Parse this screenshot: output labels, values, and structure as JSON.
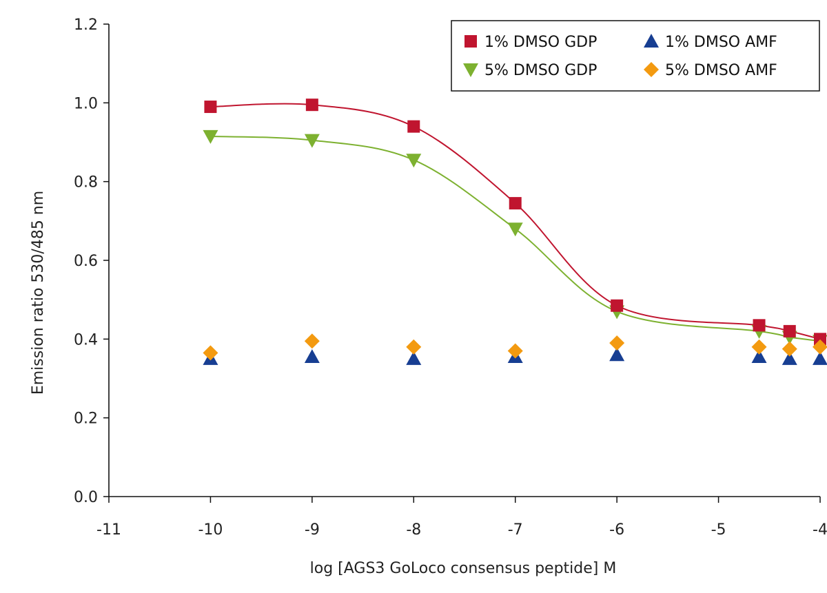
{
  "chart_data": {
    "type": "scatter",
    "title": "",
    "xlabel": "log [AGS3 GoLoco consensus peptide] M",
    "ylabel": "Emission ratio 530/485 nm",
    "xlim": [
      -11,
      -4
    ],
    "ylim": [
      0,
      1.2
    ],
    "x_ticks": [
      "-11",
      "-10",
      "-9",
      "-8",
      "-7",
      "-6",
      "-5",
      "-4"
    ],
    "y_ticks": [
      "0.0",
      "0.2",
      "0.4",
      "0.6",
      "0.8",
      "1.0",
      "1.2"
    ],
    "grid": false,
    "legend_position": "top-right",
    "series": [
      {
        "name": "1% DMSO GDP",
        "marker": "square",
        "color": "#c0152f",
        "x": [
          -10,
          -9,
          -8,
          -7,
          -6,
          -4.6,
          -4.3,
          -4
        ],
        "y": [
          0.99,
          0.995,
          0.94,
          0.745,
          0.485,
          0.435,
          0.42,
          0.4
        ],
        "fit_curve": true
      },
      {
        "name": "1% DMSO AMF",
        "marker": "triangle-up",
        "color": "#173e92",
        "x": [
          -10,
          -9,
          -8,
          -7,
          -6,
          -4.6,
          -4.3,
          -4
        ],
        "y": [
          0.35,
          0.355,
          0.35,
          0.355,
          0.36,
          0.355,
          0.35,
          0.35
        ],
        "fit_curve": false
      },
      {
        "name": "5% DMSO GDP",
        "marker": "triangle-down",
        "color": "#7db130",
        "x": [
          -10,
          -9,
          -8,
          -7,
          -6,
          -4.6,
          -4.3,
          -4
        ],
        "y": [
          0.915,
          0.905,
          0.855,
          0.68,
          0.47,
          0.42,
          0.405,
          0.395
        ],
        "fit_curve": true
      },
      {
        "name": "5% DMSO AMF",
        "marker": "diamond",
        "color": "#f39a10",
        "x": [
          -10,
          -9,
          -8,
          -7,
          -6,
          -4.6,
          -4.3,
          -4
        ],
        "y": [
          0.365,
          0.395,
          0.38,
          0.37,
          0.39,
          0.38,
          0.375,
          0.38
        ],
        "fit_curve": false
      }
    ]
  }
}
